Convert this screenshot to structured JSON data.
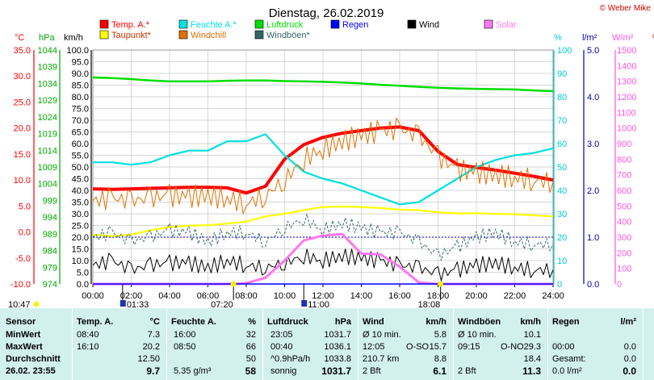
{
  "header": {
    "title": "Dienstag, 26.02.2019",
    "copyright": "© Weber Mike"
  },
  "legend": [
    {
      "label": "Temp. A.*",
      "color": "#ff0000"
    },
    {
      "label": "Taupunkt*",
      "color": "#ffff00"
    },
    {
      "label": "Feuchte A.*",
      "color": "#00e0e0"
    },
    {
      "label": "Windchill",
      "color": "#e07000"
    },
    {
      "label": "Luftdruck",
      "color": "#00dd00"
    },
    {
      "label": "Windböen*",
      "color": "#336666"
    },
    {
      "label": "Regen",
      "color": "#0000ff"
    },
    {
      "label": "Wind",
      "color": "#000000"
    },
    {
      "label": "Solar",
      "color": "#ff77ee"
    }
  ],
  "units": {
    "temp": "°C",
    "hpa": "hPa",
    "kmh": "km/h",
    "pct": "%",
    "rain": "l/m²",
    "solar": "W/m²"
  },
  "axes": {
    "temp_ticks": [
      "35.0",
      "30.0",
      "25.0",
      "20.0",
      "15.0",
      "10.0",
      "5.0",
      "0.0",
      "-5.0",
      "-10.0"
    ],
    "hpa_ticks": [
      "1044",
      "1039",
      "1034",
      "1029",
      "1024",
      "1019",
      "1014",
      "1009",
      "1004",
      "999",
      "994",
      "989",
      "984",
      "979",
      "974"
    ],
    "kmh_ticks": [
      "100.0",
      "95.0",
      "90.0",
      "85.0",
      "80.0",
      "75.0",
      "70.0",
      "65.0",
      "60.0",
      "55.0",
      "50.0",
      "45.0",
      "40.0",
      "35.0",
      "30.0",
      "25.0",
      "20.0",
      "15.0",
      "10.0",
      "5.0",
      "0.0"
    ],
    "pct_ticks": [
      "100",
      "90",
      "80",
      "70",
      "60",
      "50",
      "40",
      "30",
      "20",
      "10",
      "0"
    ],
    "rain_ticks": [
      "5.0",
      "4.0",
      "3.0",
      "2.0",
      "1.0",
      "0.0"
    ],
    "solar_ticks": [
      "1500",
      "1400",
      "1300",
      "1200",
      "1100",
      "1000",
      "900",
      "800",
      "700",
      "600",
      "500",
      "400",
      "300",
      "200",
      "100",
      "0"
    ],
    "x_ticks": [
      "00:00",
      "02:00",
      "04:00",
      "06:00",
      "08:00",
      "10:00",
      "12:00",
      "14:00",
      "16:00",
      "18:00",
      "20:00",
      "22:00",
      "24:00"
    ]
  },
  "time_markers": {
    "now": "10:47",
    "sunrise": "01:33",
    "t1": "07:20",
    "t2": "11:00",
    "t3": "18:08"
  },
  "chart_data": {
    "type": "line",
    "x": [
      0,
      1,
      2,
      3,
      4,
      5,
      6,
      7,
      8,
      9,
      10,
      11,
      12,
      13,
      14,
      15,
      16,
      17,
      18,
      19,
      20,
      21,
      22,
      23,
      24
    ],
    "series": [
      {
        "name": "Temp. A.*",
        "unit": "°C",
        "color": "#ff0000",
        "values": [
          8.3,
          8.2,
          8.3,
          8.4,
          8.5,
          8.6,
          8.6,
          8.5,
          7.5,
          8.8,
          14.0,
          16.8,
          18.2,
          19.0,
          19.5,
          20.0,
          20.2,
          19.5,
          15.5,
          13.0,
          12.4,
          11.9,
          11.3,
          10.7,
          10.0
        ]
      },
      {
        "name": "Taupunkt*",
        "unit": "°C",
        "color": "#ffff00",
        "values": [
          -0.5,
          -0.8,
          -0.5,
          0.3,
          1.0,
          1.2,
          1.3,
          1.6,
          2.0,
          3.0,
          3.5,
          4.2,
          4.8,
          4.9,
          4.8,
          4.6,
          4.3,
          4.2,
          3.8,
          3.6,
          3.6,
          3.5,
          3.4,
          3.2,
          3.0
        ]
      },
      {
        "name": "Feuchte A.*",
        "unit": "%",
        "color": "#00e0e0",
        "values": [
          52,
          52,
          51,
          52,
          55,
          57,
          57,
          61,
          61,
          64,
          55,
          48,
          45,
          43,
          40,
          37,
          34,
          35,
          40,
          45,
          50,
          53,
          55,
          56,
          58
        ]
      },
      {
        "name": "Windchill",
        "unit": "°C",
        "color": "#e07000",
        "values": [
          6.0,
          6.5,
          6.0,
          6.5,
          7.0,
          6.8,
          7.0,
          6.5,
          5.5,
          7.0,
          10.0,
          14.0,
          16.0,
          17.5,
          18.5,
          19.5,
          19.8,
          18.5,
          14.5,
          12.0,
          11.5,
          11.0,
          10.5,
          10.0,
          9.6
        ]
      },
      {
        "name": "Luftdruck",
        "unit": "hPa",
        "color": "#00dd00",
        "values": [
          1035.8,
          1035.6,
          1035.3,
          1034.9,
          1034.6,
          1034.6,
          1034.6,
          1034.8,
          1034.9,
          1034.9,
          1034.7,
          1034.6,
          1034.5,
          1034.3,
          1034.0,
          1033.6,
          1033.3,
          1033.0,
          1032.7,
          1032.5,
          1032.4,
          1032.3,
          1032.2,
          1031.9,
          1031.7
        ]
      },
      {
        "name": "Wind",
        "unit": "km/h",
        "color": "#000000",
        "values": [
          8,
          10,
          6,
          8,
          9,
          9,
          7,
          10,
          8,
          7,
          9,
          12,
          10,
          12,
          11,
          10,
          8,
          7,
          4,
          6,
          8,
          9,
          7,
          6,
          6
        ]
      },
      {
        "name": "Windböen*",
        "unit": "km/h",
        "color": "#336666",
        "values": [
          20,
          22,
          18,
          20,
          23,
          22,
          18,
          22,
          22,
          18,
          24,
          28,
          23,
          26,
          24,
          22,
          22,
          18,
          12,
          16,
          20,
          22,
          18,
          17,
          17
        ]
      },
      {
        "name": "Solar",
        "unit": "W/m²",
        "color": "#ff77ee",
        "values": [
          0,
          0,
          0,
          0,
          0,
          0,
          0,
          0,
          5,
          40,
          150,
          280,
          310,
          320,
          195,
          190,
          110,
          10,
          0,
          0,
          0,
          0,
          0,
          0,
          0
        ]
      },
      {
        "name": "Regen",
        "unit": "l/m²",
        "color": "#0000ff",
        "values": [
          0,
          0,
          0,
          0,
          0,
          0,
          0,
          0,
          0,
          0,
          0,
          0,
          0,
          0,
          0,
          0,
          0,
          0,
          0,
          0,
          0,
          0,
          0,
          0,
          0
        ]
      }
    ],
    "ylim_temp": [
      -10,
      35
    ],
    "ylim_hpa": [
      974,
      1044
    ],
    "ylim_kmh": [
      0,
      100
    ],
    "ylim_pct": [
      0,
      100
    ],
    "ylim_rain": [
      0,
      5
    ],
    "ylim_solar": [
      0,
      1500
    ],
    "grid": true
  },
  "table": {
    "headers": {
      "sensor": "Sensor",
      "temp": "Temp. A.",
      "temp_unit": "°C",
      "hum": "Feuchte A.",
      "hum_unit": "%",
      "press": "Luftdruck",
      "press_unit": "hPa",
      "wind": "Wind",
      "wind_unit": "km/h",
      "gust": "Windböen",
      "gust_unit": "km/h",
      "rain": "Regen",
      "rain_unit": "l/m²"
    },
    "rows": [
      {
        "label": "MinWert",
        "temp_t": "08:40",
        "temp_v": "7.3",
        "hum_t": "16:00",
        "hum_v": "32",
        "press_t": "23:05",
        "press_v": "1031.7",
        "wind_t": "Ø 10 min.",
        "wind_d": "",
        "wind_v": "5.8",
        "gust_t": "Ø 10 min.",
        "gust_d": "",
        "gust_v": "10.1",
        "rain_t": "",
        "rain_v": ""
      },
      {
        "label": "MaxWert",
        "temp_t": "16:10",
        "temp_v": "20.2",
        "hum_t": "08:50",
        "hum_v": "66",
        "press_t": "00:40",
        "press_v": "1036.1",
        "wind_t": "12:05",
        "wind_d": "O-SO",
        "wind_v": "15.7",
        "gust_t": "09:15",
        "gust_d": "O-NO",
        "gust_v": "29.3",
        "rain_t": "00:00",
        "rain_v": "0.0"
      },
      {
        "label": "Durchschnitt",
        "temp_t": "",
        "temp_v": "12.50",
        "hum_t": "",
        "hum_v": "50",
        "press_t": "^0.9hPa/h",
        "press_v": "1033.8",
        "wind_t": "210.7 km",
        "wind_d": "",
        "wind_v": "8.8",
        "gust_t": "",
        "gust_d": "",
        "gust_v": "18.4",
        "rain_t": "Gesamt:",
        "rain_v": "0.0"
      },
      {
        "label": "26.02. 23:55",
        "temp_t": "",
        "temp_v": "9.7",
        "hum_t": "5.35 g/m³",
        "hum_v": "58",
        "press_t": "sonnig",
        "press_v": "1031.7",
        "wind_t": "2 Bft",
        "wind_d": "",
        "wind_v": "6.1",
        "gust_t": "2 Bft",
        "gust_d": "",
        "gust_v": "11.3",
        "rain_t": "0.0 l/m²",
        "rain_v": "0.0"
      }
    ]
  }
}
